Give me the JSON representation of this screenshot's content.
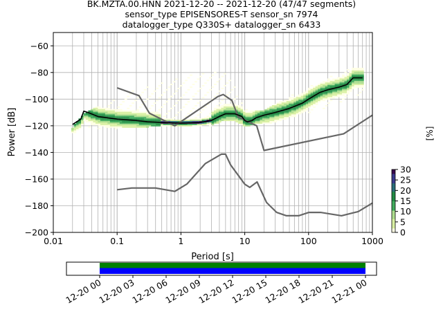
{
  "title": {
    "line1": "BK.MZTA.00.HNN   2021-12-20 -- 2021-12-20  (47/47 segments)",
    "line2": "sensor_type EPISENSORES-T sensor_sn 7974",
    "line3": "datalogger_type Q330S+ datalogger_sn 6433"
  },
  "chart_data": [
    {
      "type": "line",
      "xlabel": "Period [s]",
      "ylabel": "Power [dB]",
      "xscale": "log",
      "xlim": [
        0.01,
        1000
      ],
      "ylim": [
        -200,
        -50
      ],
      "x_ticks": [
        0.01,
        0.1,
        1,
        10,
        100,
        1000
      ],
      "x_tick_labels": [
        "0.01",
        "0.1",
        "1",
        "10",
        "100",
        "1000"
      ],
      "y_ticks": [
        -200,
        -180,
        -160,
        -140,
        -120,
        -100,
        -80,
        -60
      ],
      "y_tick_labels": [
        "−200",
        "−180",
        "−160",
        "−140",
        "−120",
        "−100",
        "−80",
        "−60"
      ],
      "grid": true,
      "colorbar": {
        "label": "[%]",
        "min": 0,
        "max": 30,
        "ticks": [
          0,
          5,
          10,
          15,
          20,
          25,
          30
        ],
        "colors": [
          "#ffffe5",
          "#d9f0a3",
          "#addd8e",
          "#41ab5d",
          "#238b45",
          "#2a6f7a",
          "#3b3b8f",
          "#3a0a4e"
        ]
      },
      "series": [
        {
          "role": "new low noise model",
          "color": "#666666",
          "points": [
            [
              0.1,
              -168
            ],
            [
              0.17,
              -166.7
            ],
            [
              0.4,
              -166.7
            ],
            [
              0.8,
              -169.2
            ],
            [
              1.24,
              -163.7
            ],
            [
              2.4,
              -148.4
            ],
            [
              4.3,
              -141.3
            ],
            [
              5.0,
              -141.3
            ],
            [
              6.0,
              -149.3
            ],
            [
              10,
              -163.8
            ],
            [
              12,
              -166.2
            ],
            [
              15.6,
              -162.1
            ],
            [
              21.9,
              -177.5
            ],
            [
              31.6,
              -185
            ],
            [
              45,
              -187.5
            ],
            [
              70,
              -187.5
            ],
            [
              101,
              -185
            ],
            [
              154,
              -185
            ],
            [
              328,
              -187.5
            ],
            [
              600,
              -184.4
            ],
            [
              1000,
              -178
            ]
          ]
        },
        {
          "role": "new high noise model",
          "color": "#666666",
          "points": [
            [
              0.1,
              -91.5
            ],
            [
              0.22,
              -97.4
            ],
            [
              0.32,
              -110.5
            ],
            [
              0.8,
              -120
            ],
            [
              3.8,
              -98
            ],
            [
              4.6,
              -96.5
            ],
            [
              6.3,
              -101
            ],
            [
              7.9,
              -113.5
            ],
            [
              15.4,
              -120
            ],
            [
              20,
              -138.5
            ],
            [
              354.8,
              -126
            ],
            [
              1000,
              -112
            ]
          ]
        },
        {
          "role": "mode",
          "color": "#000000",
          "points": [
            [
              0.02,
              -119
            ],
            [
              0.027,
              -115
            ],
            [
              0.03,
              -109
            ],
            [
              0.035,
              -110
            ],
            [
              0.05,
              -113
            ],
            [
              0.1,
              -115
            ],
            [
              0.2,
              -116
            ],
            [
              0.3,
              -117
            ],
            [
              0.5,
              -117.5
            ],
            [
              1,
              -118
            ],
            [
              2,
              -117.5
            ],
            [
              3,
              -116
            ],
            [
              4,
              -113
            ],
            [
              5,
              -111
            ],
            [
              7,
              -111
            ],
            [
              9,
              -113
            ],
            [
              10,
              -116
            ],
            [
              11,
              -117
            ],
            [
              13,
              -116
            ],
            [
              15,
              -114
            ],
            [
              20,
              -112
            ],
            [
              30,
              -110
            ],
            [
              50,
              -107
            ],
            [
              80,
              -103
            ],
            [
              100,
              -100
            ],
            [
              150,
              -95
            ],
            [
              200,
              -93
            ],
            [
              300,
              -91
            ],
            [
              400,
              -89
            ],
            [
              500,
              -84
            ],
            [
              700,
              -84
            ]
          ]
        },
        {
          "role": "ppsd upper envelope",
          "color": "#d9f0a3",
          "points": [
            [
              0.02,
              -122
            ],
            [
              0.03,
              -112
            ],
            [
              0.05,
              -106
            ],
            [
              0.1,
              -100
            ],
            [
              0.2,
              -93
            ],
            [
              0.5,
              -88
            ],
            [
              1,
              -84
            ],
            [
              2,
              -81
            ],
            [
              3,
              -79
            ],
            [
              5,
              -81
            ],
            [
              7,
              -90
            ],
            [
              10,
              -107
            ],
            [
              15,
              -110
            ],
            [
              20,
              -109
            ],
            [
              50,
              -98
            ],
            [
              100,
              -92
            ],
            [
              200,
              -85
            ],
            [
              400,
              -78
            ],
            [
              700,
              -76
            ]
          ]
        },
        {
          "role": "ppsd lower envelope",
          "color": "#d9f0a3",
          "points": [
            [
              0.02,
              -125
            ],
            [
              0.03,
              -122
            ],
            [
              0.1,
              -121
            ],
            [
              0.3,
              -120
            ],
            [
              1,
              -120
            ],
            [
              2,
              -120
            ],
            [
              3,
              -119
            ],
            [
              5,
              -115
            ],
            [
              7,
              -116
            ],
            [
              10,
              -120
            ],
            [
              15,
              -118
            ],
            [
              30,
              -117
            ],
            [
              50,
              -113
            ],
            [
              100,
              -110
            ],
            [
              200,
              -105
            ],
            [
              400,
              -100
            ],
            [
              700,
              -96
            ]
          ]
        }
      ]
    },
    {
      "type": "bar",
      "role": "data coverage",
      "x_tick_labels": [
        "12-20 00",
        "12-20 03",
        "12-20 06",
        "12-20 09",
        "12-20 12",
        "12-20 15",
        "12-20 18",
        "12-20 21",
        "12-21 00"
      ],
      "xlim": [
        "2021-12-19 21:00",
        "2021-12-21 01:00"
      ],
      "segments": [
        {
          "start": "2021-12-20 00:00",
          "end": "2021-12-21 00:00",
          "color": "#008000",
          "row": "upper"
        },
        {
          "start": "2021-12-20 00:00",
          "end": "2021-12-21 00:00",
          "color": "#0000ff",
          "row": "lower"
        }
      ]
    }
  ]
}
